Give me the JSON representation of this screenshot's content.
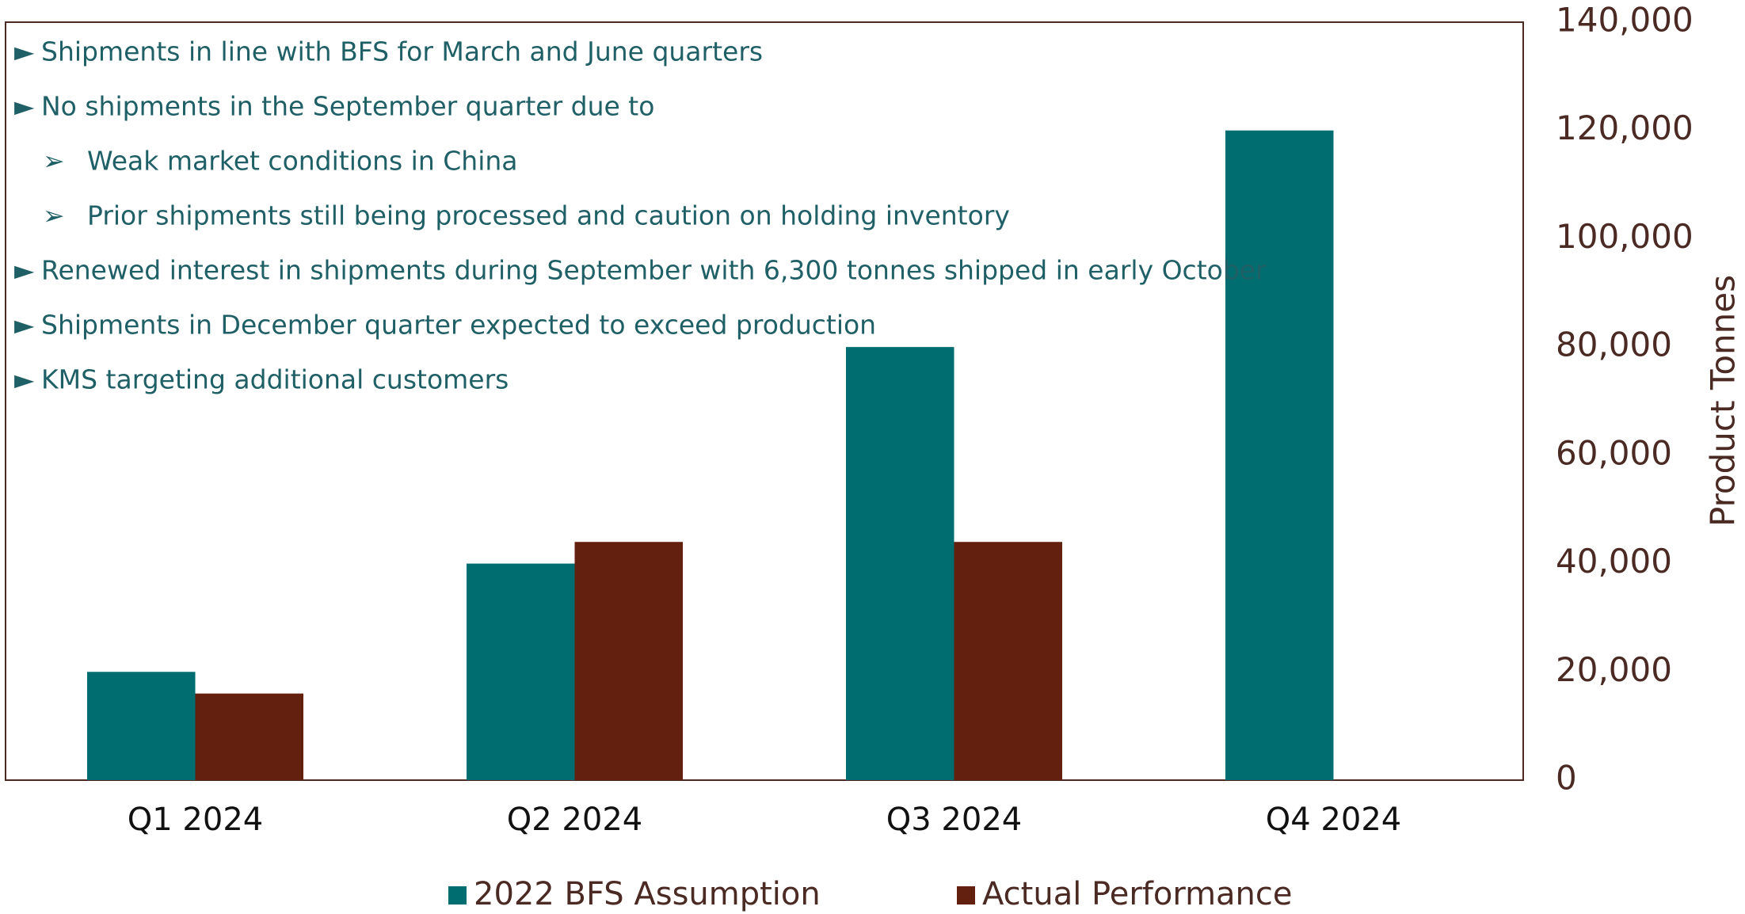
{
  "chart_data": {
    "type": "bar",
    "categories": [
      "Q1 2024",
      "Q2 2024",
      "Q3 2024",
      "Q4 2024"
    ],
    "series": [
      {
        "name": "2022 BFS Assumption",
        "color": "#006d70",
        "values": [
          20000,
          40000,
          80000,
          120000
        ]
      },
      {
        "name": "Actual Performance",
        "color": "#64200f",
        "values": [
          16000,
          44000,
          44000,
          null
        ]
      }
    ],
    "ylabel": "Product Tonnes",
    "ylim": [
      0,
      140000
    ],
    "yticks": [
      0,
      {
        "value": 20000,
        "label": "20,000"
      },
      {
        "value": 40000,
        "label": "40,000"
      },
      {
        "value": 60000,
        "label": "60,000"
      },
      {
        "value": 80000,
        "label": "80,000"
      },
      {
        "value": 100000,
        "label": "100,000"
      },
      {
        "value": 120000,
        "label": "120,000"
      },
      {
        "value": 140000,
        "label": "140,000"
      }
    ],
    "annotations": [
      {
        "text": "Shipments in line with BFS for March and June quarters",
        "level": 1
      },
      {
        "text": "No shipments in the September quarter due to",
        "level": 1
      },
      {
        "text": "Weak market conditions in China",
        "level": 2
      },
      {
        "text": "Prior shipments still being processed and caution on holding inventory",
        "level": 2
      },
      {
        "text": "Renewed interest in shipments during September with 6,300 tonnes shipped in early October",
        "level": 1
      },
      {
        "text": "Shipments in December quarter expected to exceed production",
        "level": 1
      },
      {
        "text": "KMS targeting additional customers",
        "level": 1
      }
    ]
  }
}
